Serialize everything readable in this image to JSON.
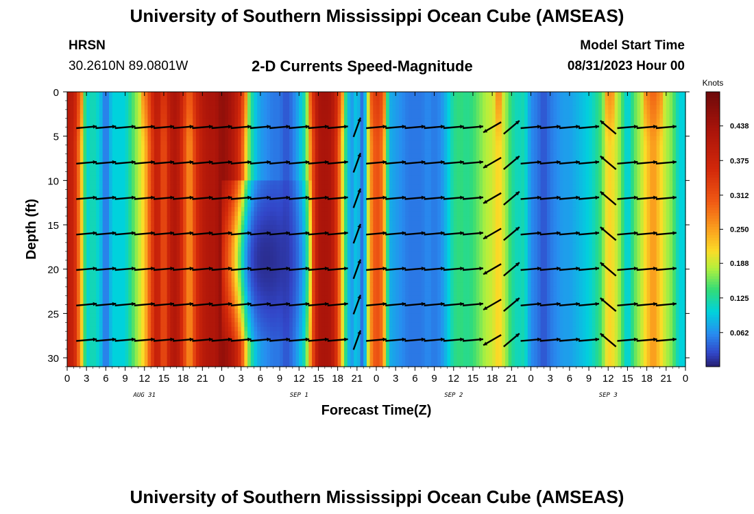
{
  "header": {
    "title": "University of Southern Mississippi Ocean Cube (AMSEAS)",
    "station": "HRSN",
    "coordinates": "30.2610N  89.0801W",
    "subtitle": "2-D Currents Speed-Magnitude",
    "model_start_label": "Model Start Time",
    "model_start_value": "08/31/2023 Hour 00"
  },
  "footer": {
    "title": "University of Southern Mississippi Ocean Cube (AMSEAS)"
  },
  "chart_data": {
    "type": "heatmap",
    "title": "2-D Currents Speed-Magnitude",
    "xlabel": "Forecast Time(Z)",
    "ylabel": "Depth (ft)",
    "xlim": [
      0,
      96
    ],
    "ylim": [
      0,
      31
    ],
    "x_ticks": [
      0,
      3,
      6,
      9,
      12,
      15,
      18,
      21,
      24,
      27,
      30,
      33,
      36,
      39,
      42,
      45,
      48,
      51,
      54,
      57,
      60,
      63,
      66,
      69,
      72,
      75,
      78,
      81,
      84,
      87,
      90,
      93,
      96
    ],
    "x_tick_labels": [
      "0",
      "3",
      "6",
      "9",
      "12",
      "15",
      "18",
      "21",
      "0",
      "3",
      "6",
      "9",
      "12",
      "15",
      "18",
      "21",
      "0",
      "3",
      "6",
      "9",
      "12",
      "15",
      "18",
      "21",
      "0",
      "3",
      "6",
      "9",
      "12",
      "15",
      "18",
      "21",
      "0"
    ],
    "y_ticks": [
      0,
      5,
      10,
      15,
      20,
      25,
      30
    ],
    "y_tick_labels": [
      "0",
      "5",
      "10",
      "15",
      "20",
      "25",
      "30"
    ],
    "day_labels": [
      {
        "hour": 12,
        "label": "AUG 31"
      },
      {
        "hour": 36,
        "label": "SEP 1"
      },
      {
        "hour": 60,
        "label": "SEP 2"
      },
      {
        "hour": 84,
        "label": "SEP 3"
      }
    ],
    "colorbar": {
      "unit": "Knots",
      "min": 0.0,
      "max": 0.5,
      "tick_values": [
        0.062,
        0.125,
        0.188,
        0.25,
        0.312,
        0.375,
        0.438
      ],
      "tick_labels": [
        "0.062",
        "0.125",
        "0.188",
        "0.250",
        "0.312",
        "0.375",
        "0.438"
      ]
    },
    "speed_profile_knots": [
      [
        0,
        0.4
      ],
      [
        1,
        0.38
      ],
      [
        2,
        0.26
      ],
      [
        3,
        0.1
      ],
      [
        4,
        0.12
      ],
      [
        5,
        0.1
      ],
      [
        6,
        0.04
      ],
      [
        7,
        0.1
      ],
      [
        8,
        0.1
      ],
      [
        9,
        0.1
      ],
      [
        12,
        0.22
      ],
      [
        13,
        0.32
      ],
      [
        14,
        0.4
      ],
      [
        15,
        0.3
      ],
      [
        16,
        0.4
      ],
      [
        17,
        0.42
      ],
      [
        18,
        0.34
      ],
      [
        19,
        0.25
      ],
      [
        20,
        0.35
      ],
      [
        21,
        0.4
      ],
      [
        22,
        0.42
      ],
      [
        23,
        0.42
      ],
      [
        24,
        0.46
      ],
      [
        25,
        0.44
      ],
      [
        26,
        0.4
      ],
      [
        27,
        0.33
      ],
      [
        28,
        0.18
      ],
      [
        29,
        0.1
      ],
      [
        30,
        0.07
      ],
      [
        31,
        0.06
      ],
      [
        32,
        0.05
      ],
      [
        33,
        0.05
      ],
      [
        34,
        0.03
      ],
      [
        35,
        0.05
      ],
      [
        36,
        0.08
      ],
      [
        37,
        0.13
      ],
      [
        38,
        0.3
      ],
      [
        39,
        0.42
      ],
      [
        40,
        0.43
      ],
      [
        41,
        0.42
      ],
      [
        42,
        0.33
      ],
      [
        43,
        0.16
      ],
      [
        44,
        0.06
      ],
      [
        45,
        0.1
      ],
      [
        46,
        0.03
      ],
      [
        47,
        0.25
      ],
      [
        48,
        0.32
      ],
      [
        49,
        0.28
      ],
      [
        50,
        0.08
      ],
      [
        51,
        0.07
      ],
      [
        52,
        0.06
      ],
      [
        53,
        0.05
      ],
      [
        54,
        0.05
      ],
      [
        55,
        0.05
      ],
      [
        56,
        0.06
      ],
      [
        57,
        0.05
      ],
      [
        58,
        0.06
      ],
      [
        59,
        0.09
      ],
      [
        60,
        0.13
      ],
      [
        61,
        0.14
      ],
      [
        62,
        0.13
      ],
      [
        63,
        0.14
      ],
      [
        64,
        0.16
      ],
      [
        65,
        0.18
      ],
      [
        66,
        0.19
      ],
      [
        67,
        0.22
      ],
      [
        68,
        0.18
      ],
      [
        69,
        0.13
      ],
      [
        70,
        0.11
      ],
      [
        71,
        0.12
      ],
      [
        72,
        0.06
      ],
      [
        73,
        0.05
      ],
      [
        74,
        0.03
      ],
      [
        75,
        0.05
      ],
      [
        76,
        0.06
      ],
      [
        77,
        0.07
      ],
      [
        78,
        0.07
      ],
      [
        79,
        0.08
      ],
      [
        80,
        0.09
      ],
      [
        81,
        0.1
      ],
      [
        82,
        0.12
      ],
      [
        83,
        0.15
      ],
      [
        84,
        0.22
      ],
      [
        85,
        0.2
      ],
      [
        86,
        0.16
      ],
      [
        87,
        0.09
      ],
      [
        88,
        0.15
      ],
      [
        89,
        0.18
      ],
      [
        90,
        0.22
      ],
      [
        91,
        0.26
      ],
      [
        92,
        0.22
      ],
      [
        93,
        0.18
      ],
      [
        94,
        0.16
      ],
      [
        95,
        0.1
      ],
      [
        96,
        0.1
      ]
    ],
    "anomaly_speed_knots": 0.01,
    "anomaly_window_hours": [
      24,
      38
    ],
    "anomaly_depth_range_ft": [
      10,
      28
    ],
    "surface_max_knots": 0.48,
    "vector_hours": [
      3,
      6,
      9,
      12,
      15,
      18,
      21,
      24,
      27,
      30,
      33,
      36,
      39,
      42,
      45,
      48,
      51,
      54,
      57,
      60,
      63,
      66,
      69,
      72,
      75,
      78,
      81,
      84,
      87,
      90,
      93
    ],
    "vector_depths_ft": [
      4,
      8,
      12,
      16,
      20,
      24,
      28
    ],
    "vector_angle_changes": [
      {
        "hour": 45,
        "angle_deg": 70
      },
      {
        "hour": 66,
        "angle_deg": 210
      },
      {
        "hour": 69,
        "angle_deg": 40
      },
      {
        "hour": 84,
        "angle_deg": 140
      }
    ]
  }
}
